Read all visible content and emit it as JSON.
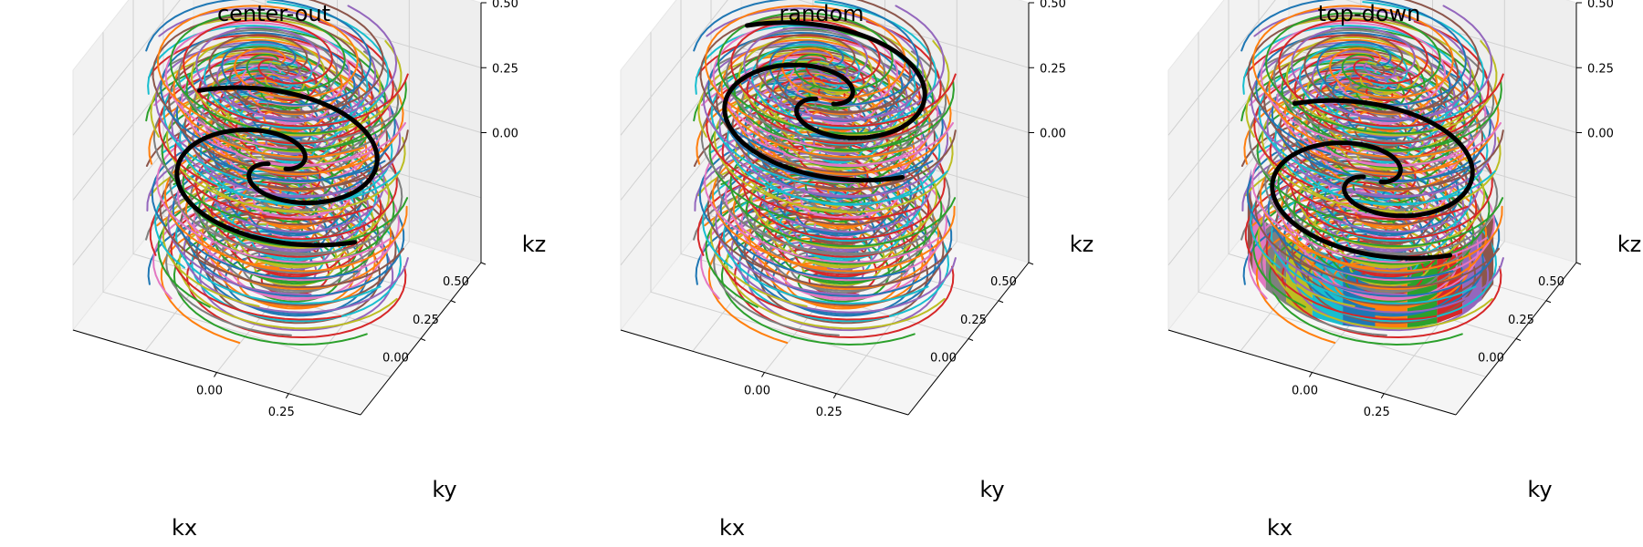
{
  "chart_data": [
    {
      "type": "line3d",
      "title": "center-out",
      "xlabel": "kx",
      "ylabel": "ky",
      "zlabel": "kz",
      "xticks": [
        "0.00",
        "0.25"
      ],
      "yticks": [
        "0.00",
        "0.25",
        "0.50"
      ],
      "zticks": [
        "0.50",
        "0.25",
        "0.00"
      ],
      "xlim": [
        -0.5,
        0.5
      ],
      "ylim": [
        -0.5,
        0.5
      ],
      "zlim": [
        -0.5,
        0.5
      ],
      "stack_count": 2,
      "spiral_turns": 2,
      "highlight_color": "#000000",
      "highlight_level": 0
    },
    {
      "type": "line3d",
      "title": "random",
      "xlabel": "kx",
      "ylabel": "ky",
      "zlabel": "kz",
      "xticks": [
        "0.00",
        "0.25"
      ],
      "yticks": [
        "0.00",
        "0.25",
        "0.50"
      ],
      "zticks": [
        "0.50",
        "0.25",
        "0.00"
      ],
      "xlim": [
        -0.5,
        0.5
      ],
      "ylim": [
        -0.5,
        0.5
      ],
      "zlim": [
        -0.5,
        0.5
      ],
      "stack_count": 2,
      "spiral_turns": 2,
      "highlight_color": "#000000",
      "highlight_level": 0.25
    },
    {
      "type": "line3d",
      "title": "top-down",
      "xlabel": "kx",
      "ylabel": "ky",
      "zlabel": "kz",
      "xticks": [
        "0.00",
        "0.25"
      ],
      "yticks": [
        "0.00",
        "0.25",
        "0.50"
      ],
      "zticks": [
        "0.50",
        "0.25",
        "0.00"
      ],
      "xlim": [
        -0.5,
        0.5
      ],
      "ylim": [
        -0.5,
        0.5
      ],
      "zlim": [
        -0.5,
        0.5
      ],
      "stack_count": 2,
      "spiral_turns": 2,
      "highlight_color": "#000000",
      "highlight_level": -0.05
    }
  ],
  "palette": [
    "#1f77b4",
    "#ff7f0e",
    "#2ca02c",
    "#d62728",
    "#9467bd",
    "#8c564b",
    "#e377c2",
    "#7f7f7f",
    "#bcbd22",
    "#17becf"
  ]
}
